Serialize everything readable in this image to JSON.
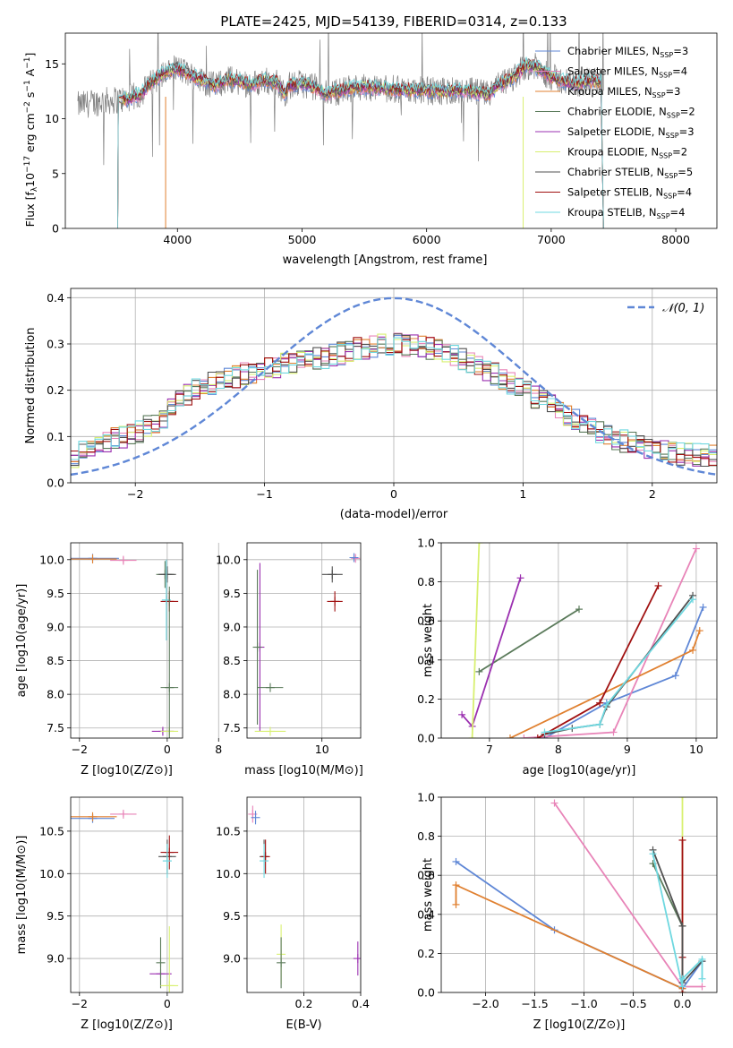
{
  "figure_title": "PLATE=2425, MJD=54139, FIBERID=0314, z=0.133",
  "colors": {
    "Chabrier MILES": "#5f87d6",
    "Salpeter MILES": "#e884b8",
    "Kroupa MILES": "#e08030",
    "Chabrier ELODIE": "#5a7a5a",
    "Salpeter ELODIE": "#9b30b0",
    "Kroupa ELODIE": "#d8f070",
    "Chabrier STELIB": "#505050",
    "Salpeter STELIB": "#a01010",
    "Kroupa STELIB": "#6fd8e0",
    "data_gray": "#808080",
    "normal_curve": "#5f87d6"
  },
  "chart_data": [
    {
      "id": "spectrum",
      "type": "line",
      "xlabel": "wavelength [Angstrom, rest frame]",
      "ylabel": "Flux [f_λ10^-17 erg cm^-2 s^-1 A^-1]",
      "xlim": [
        3100,
        8330
      ],
      "ylim": [
        0,
        17.8
      ],
      "xticks": [
        "4000",
        "5000",
        "6000",
        "7000",
        "8000"
      ],
      "yticks": [
        "0",
        "5",
        "10",
        "15"
      ],
      "legend_position": "upper right",
      "legend": [
        {
          "name": "Chabrier MILES",
          "nssp": "3"
        },
        {
          "name": "Salpeter MILES",
          "nssp": "4"
        },
        {
          "name": "Kroupa MILES",
          "nssp": "3"
        },
        {
          "name": "Chabrier ELODIE",
          "nssp": "2"
        },
        {
          "name": "Salpeter ELODIE",
          "nssp": "3"
        },
        {
          "name": "Kroupa ELODIE",
          "nssp": "2"
        },
        {
          "name": "Chabrier STELIB",
          "nssp": "5"
        },
        {
          "name": "Salpeter STELIB",
          "nssp": "4"
        },
        {
          "name": "Kroupa STELIB",
          "nssp": "4"
        }
      ],
      "model_continuum": [
        [
          3200,
          11.2
        ],
        [
          3400,
          11.6
        ],
        [
          3600,
          11.8
        ],
        [
          3700,
          12.2
        ],
        [
          3800,
          13.4
        ],
        [
          3900,
          14.2
        ],
        [
          4000,
          14.6
        ],
        [
          4100,
          14.0
        ],
        [
          4200,
          13.5
        ],
        [
          4300,
          13.0
        ],
        [
          4400,
          13.6
        ],
        [
          4500,
          13.4
        ],
        [
          4600,
          13.1
        ],
        [
          4700,
          13.5
        ],
        [
          4800,
          13.3
        ],
        [
          4860,
          12.3
        ],
        [
          4900,
          13.0
        ],
        [
          5000,
          13.2
        ],
        [
          5100,
          12.9
        ],
        [
          5180,
          12.3
        ],
        [
          5300,
          12.5
        ],
        [
          5400,
          12.8
        ],
        [
          5500,
          12.9
        ],
        [
          5700,
          12.7
        ],
        [
          5900,
          12.6
        ],
        [
          6100,
          12.5
        ],
        [
          6300,
          12.6
        ],
        [
          6500,
          12.2
        ],
        [
          6563,
          12.9
        ],
        [
          6700,
          13.8
        ],
        [
          6800,
          14.9
        ],
        [
          6900,
          14.6
        ],
        [
          7000,
          13.8
        ],
        [
          7100,
          13.4
        ],
        [
          7200,
          13.2
        ],
        [
          7300,
          13.4
        ]
      ],
      "model_cutoffs": {
        "blue_start": 3525,
        "red_end": 7420,
        "gap_start": 3905,
        "gap_end": 3915,
        "gap2_start": 6775,
        "gap2_end": 6790
      }
    },
    {
      "id": "residuals",
      "type": "line",
      "xlabel": "(data-model)/error",
      "ylabel": "Normed distribution",
      "xlim": [
        -2.5,
        2.5
      ],
      "ylim": [
        0,
        0.42
      ],
      "xticks": [
        "−2",
        "−1",
        "0",
        "1",
        "2"
      ],
      "yticks": [
        "0.0",
        "0.1",
        "0.2",
        "0.3",
        "0.4"
      ],
      "legend_label": "𝒩(0, 1)",
      "legend_position": "upper right",
      "bin_width": 0.1,
      "bin_start": -2.5,
      "envelope": [
        0.055,
        0.065,
        0.075,
        0.085,
        0.09,
        0.095,
        0.1,
        0.105,
        0.11,
        0.12,
        0.13,
        0.14,
        0.16,
        0.18,
        0.19,
        0.2,
        0.21,
        0.215,
        0.22,
        0.225,
        0.23,
        0.235,
        0.238,
        0.24,
        0.245,
        0.25,
        0.255,
        0.26,
        0.262,
        0.265,
        0.268,
        0.27,
        0.275,
        0.28,
        0.285,
        0.29,
        0.292,
        0.295,
        0.297,
        0.3,
        0.3,
        0.298,
        0.296,
        0.293,
        0.29,
        0.285,
        0.28,
        0.275,
        0.268,
        0.262,
        0.255,
        0.245,
        0.235,
        0.225,
        0.215,
        0.205,
        0.195,
        0.185,
        0.175,
        0.165,
        0.155,
        0.145,
        0.135,
        0.125,
        0.115,
        0.108,
        0.1,
        0.095,
        0.09,
        0.085,
        0.08,
        0.075,
        0.07,
        0.067,
        0.065,
        0.063,
        0.062,
        0.061,
        0.06,
        0.06
      ]
    },
    {
      "id": "age_vs_Z",
      "type": "scatter",
      "xlabel": "Z [log10(Z/Z⊙)]",
      "ylabel": "age  [log10(age/yr)]",
      "xlim": [
        -2.2,
        0.35
      ],
      "ylim": [
        7.35,
        10.25
      ],
      "xticks": [
        "−2",
        "0"
      ],
      "yticks": [
        "7.5",
        "8.0",
        "8.5",
        "9.0",
        "9.5",
        "10.0"
      ],
      "points": [
        {
          "model": "Chabrier MILES",
          "x": -1.7,
          "y": 10.02,
          "xerr": 0.6,
          "yerr": 0.03
        },
        {
          "model": "Kroupa MILES",
          "x": -1.7,
          "y": 10.01,
          "xerr": 0.55,
          "yerr": 0.02
        },
        {
          "model": "Salpeter MILES",
          "x": -1.0,
          "y": 9.99,
          "xerr": 0.3,
          "yerr": 0.05
        },
        {
          "model": "Chabrier ELODIE",
          "x": -0.05,
          "y": 9.78,
          "xerr": 0.2,
          "yerr": 0.2
        },
        {
          "model": "Chabrier STELIB",
          "x": 0.0,
          "y": 9.78,
          "xerr": 0.2,
          "yerr": 0.12
        },
        {
          "model": "Salpeter STELIB",
          "x": 0.05,
          "y": 9.38,
          "xerr": 0.2,
          "yerr": 0.15
        },
        {
          "model": "Kroupa STELIB",
          "x": -0.02,
          "y": 9.4,
          "xerr": 0.1,
          "yerr": 0.6
        },
        {
          "model": "Salpeter ELODIE",
          "x": -0.1,
          "y": 7.45,
          "xerr": 0.25,
          "yerr": 0.05
        },
        {
          "model": "Kroupa ELODIE",
          "x": 0.05,
          "y": 7.45,
          "xerr": 0.2,
          "yerr": 0.05
        },
        {
          "model": "Chabrier ELODIE",
          "x": 0.05,
          "y": 8.1,
          "xerr": 0.2,
          "yerr": 1.5
        }
      ]
    },
    {
      "id": "age_vs_mass",
      "type": "scatter",
      "xlabel": "mass [log10(M/M⊙)]",
      "ylabel": "",
      "xlim": [
        8.55,
        10.75
      ],
      "ylim": [
        7.35,
        10.25
      ],
      "xticks": [
        "8",
        "10"
      ],
      "yticks": [
        "7.5",
        "8.0",
        "8.5",
        "9.0",
        "9.5",
        "10.0"
      ],
      "points": [
        {
          "model": "Salpeter MILES",
          "x": 10.65,
          "y": 10.02,
          "xerr": 0.05,
          "yerr": 0.05
        },
        {
          "model": "Chabrier MILES",
          "x": 10.62,
          "y": 10.03,
          "xerr": 0.03,
          "yerr": 0.02
        },
        {
          "model": "Chabrier STELIB",
          "x": 10.2,
          "y": 9.78,
          "xerr": 0.2,
          "yerr": 0.12
        },
        {
          "model": "Salpeter STELIB",
          "x": 10.25,
          "y": 9.38,
          "xerr": 0.15,
          "yerr": 0.15
        },
        {
          "model": "Salpeter ELODIE",
          "x": 8.8,
          "y": 8.7,
          "xerr": 0.02,
          "yerr": 1.25
        },
        {
          "model": "Chabrier ELODIE",
          "x": 8.75,
          "y": 8.7,
          "xerr": 0.02,
          "yerr": 1.15
        },
        {
          "model": "Chabrier ELODIE",
          "x": 9.0,
          "y": 8.1,
          "xerr": 0.25,
          "yerr": 0.0
        },
        {
          "model": "Kroupa ELODIE",
          "x": 9.0,
          "y": 7.45,
          "xerr": 0.3,
          "yerr": 0.0
        }
      ]
    },
    {
      "id": "weight_vs_age",
      "type": "line",
      "xlabel": "age  [log10(age/yr)]",
      "ylabel": "mass weight",
      "xlim": [
        6.3,
        10.3
      ],
      "ylim": [
        0,
        1.0
      ],
      "xticks": [
        "7",
        "8",
        "9",
        "10"
      ],
      "yticks": [
        "0.0",
        "0.2",
        "0.4",
        "0.6",
        "0.8",
        "1.0"
      ],
      "series": [
        {
          "model": "Chabrier MILES",
          "x": [
            7.8,
            8.7,
            9.7,
            10.1
          ],
          "y": [
            0.0,
            0.18,
            0.32,
            0.67
          ]
        },
        {
          "model": "Salpeter MILES",
          "x": [
            7.5,
            8.8,
            10.0
          ],
          "y": [
            0.0,
            0.03,
            0.97
          ]
        },
        {
          "model": "Kroupa MILES",
          "x": [
            7.3,
            9.95,
            10.05
          ],
          "y": [
            0.0,
            0.45,
            0.55
          ]
        },
        {
          "model": "Chabrier ELODIE",
          "x": [
            6.85,
            8.3
          ],
          "y": [
            0.34,
            0.66
          ]
        },
        {
          "model": "Salpeter ELODIE",
          "x": [
            6.6,
            6.75,
            7.45
          ],
          "y": [
            0.12,
            0.06,
            0.82
          ]
        },
        {
          "model": "Kroupa ELODIE",
          "x": [
            6.75,
            6.85
          ],
          "y": [
            0.0,
            1.0
          ]
        },
        {
          "model": "Chabrier STELIB",
          "x": [
            7.8,
            8.2,
            8.6,
            8.7,
            9.95
          ],
          "y": [
            0.02,
            0.05,
            0.07,
            0.16,
            0.73
          ]
        },
        {
          "model": "Salpeter STELIB",
          "x": [
            7.7,
            8.6,
            9.45
          ],
          "y": [
            0.0,
            0.18,
            0.78
          ]
        },
        {
          "model": "Kroupa STELIB",
          "x": [
            7.8,
            8.6,
            8.7,
            9.95
          ],
          "y": [
            0.03,
            0.07,
            0.17,
            0.71
          ]
        }
      ]
    },
    {
      "id": "mass_vs_Z",
      "type": "scatter",
      "xlabel": "Z [log10(Z/Z⊙)]",
      "ylabel": "mass [log10(M/M⊙)]",
      "xlim": [
        -2.2,
        0.35
      ],
      "ylim": [
        8.6,
        10.9
      ],
      "xticks": [
        "−2",
        "0"
      ],
      "yticks": [
        "9.0",
        "9.5",
        "10.0",
        "10.5"
      ],
      "points": [
        {
          "model": "Chabrier MILES",
          "x": -1.7,
          "y": 10.65,
          "xerr": 0.5,
          "yerr": 0.05
        },
        {
          "model": "Kroupa MILES",
          "x": -1.7,
          "y": 10.67,
          "xerr": 0.55,
          "yerr": 0.03
        },
        {
          "model": "Salpeter MILES",
          "x": -1.0,
          "y": 10.7,
          "xerr": 0.3,
          "yerr": 0.03
        },
        {
          "model": "Chabrier STELIB",
          "x": 0.0,
          "y": 10.2,
          "xerr": 0.2,
          "yerr": 0.2
        },
        {
          "model": "Salpeter STELIB",
          "x": 0.05,
          "y": 10.25,
          "xerr": 0.2,
          "yerr": 0.2
        },
        {
          "model": "Kroupa STELIB",
          "x": 0.0,
          "y": 10.15,
          "xerr": 0.1,
          "yerr": 0.2
        },
        {
          "model": "Salpeter ELODIE",
          "x": -0.15,
          "y": 8.82,
          "xerr": 0.25,
          "yerr": 0.02
        },
        {
          "model": "Chabrier ELODIE",
          "x": -0.15,
          "y": 8.95,
          "xerr": 0.0,
          "yerr": 0.3
        },
        {
          "model": "Kroupa ELODIE",
          "x": 0.05,
          "y": 8.68,
          "xerr": 0.2,
          "yerr": 0.7
        }
      ]
    },
    {
      "id": "mass_vs_EBV",
      "type": "scatter",
      "xlabel": "E(B-V)",
      "ylabel": "",
      "xlim": [
        0.0,
        0.4
      ],
      "ylim": [
        8.6,
        10.9
      ],
      "xticks": [
        "0.2",
        "0.4"
      ],
      "yticks": [
        "9.0",
        "9.5",
        "10.0",
        "10.5"
      ],
      "points": [
        {
          "model": "Salpeter MILES",
          "x": 0.02,
          "y": 10.7,
          "xerr": 0.0,
          "yerr": 0.1
        },
        {
          "model": "Chabrier MILES",
          "x": 0.03,
          "y": 10.66,
          "xerr": 0.0,
          "yerr": 0.08
        },
        {
          "model": "Chabrier STELIB",
          "x": 0.06,
          "y": 10.2,
          "xerr": 0.0,
          "yerr": 0.2
        },
        {
          "model": "Salpeter STELIB",
          "x": 0.065,
          "y": 10.2,
          "xerr": 0.0,
          "yerr": 0.2
        },
        {
          "model": "Kroupa STELIB",
          "x": 0.06,
          "y": 10.15,
          "xerr": 0.0,
          "yerr": 0.2
        },
        {
          "model": "Kroupa ELODIE",
          "x": 0.12,
          "y": 9.05,
          "xerr": 0.0,
          "yerr": 0.35
        },
        {
          "model": "Chabrier ELODIE",
          "x": 0.12,
          "y": 8.95,
          "xerr": 0.0,
          "yerr": 0.3
        },
        {
          "model": "Salpeter ELODIE",
          "x": 0.39,
          "y": 9.0,
          "xerr": 0.0,
          "yerr": 0.2
        }
      ]
    },
    {
      "id": "weight_vs_Z",
      "type": "line",
      "xlabel": "Z [log10(Z/Z⊙)]",
      "ylabel": "mass weight",
      "xlim": [
        -2.45,
        0.35
      ],
      "ylim": [
        0,
        1.0
      ],
      "xticks": [
        "−2.0",
        "−1.5",
        "−1.0",
        "−0.5",
        "0.0"
      ],
      "yticks": [
        "0.0",
        "0.2",
        "0.4",
        "0.6",
        "0.8",
        "1.0"
      ],
      "series": [
        {
          "model": "Chabrier MILES",
          "x": [
            -2.3,
            -1.3,
            0.0,
            0.2
          ],
          "y": [
            0.67,
            0.32,
            0.02,
            0.16
          ]
        },
        {
          "model": "Kroupa MILES",
          "x": [
            -2.3,
            -2.3,
            0.0
          ],
          "y": [
            0.45,
            0.55,
            0.02
          ]
        },
        {
          "model": "Salpeter MILES",
          "x": [
            -1.3,
            0.0,
            0.2
          ],
          "y": [
            0.97,
            0.03,
            0.03
          ]
        },
        {
          "model": "Chabrier ELODIE",
          "x": [
            -0.3,
            0.0
          ],
          "y": [
            0.66,
            0.34
          ]
        },
        {
          "model": "Kroupa ELODIE",
          "x": [
            0.0,
            0.0
          ],
          "y": [
            0.0,
            1.0
          ]
        },
        {
          "model": "Salpeter STELIB",
          "x": [
            0.0,
            0.0,
            0.0
          ],
          "y": [
            0.0,
            0.18,
            0.78
          ]
        },
        {
          "model": "Chabrier STELIB",
          "x": [
            -0.3,
            0.0,
            0.0,
            0.2
          ],
          "y": [
            0.73,
            0.34,
            0.05,
            0.16
          ]
        },
        {
          "model": "Kroupa STELIB",
          "x": [
            -0.3,
            0.0,
            0.0,
            0.2,
            0.2
          ],
          "y": [
            0.71,
            0.03,
            0.07,
            0.17,
            0.07
          ]
        }
      ]
    }
  ]
}
